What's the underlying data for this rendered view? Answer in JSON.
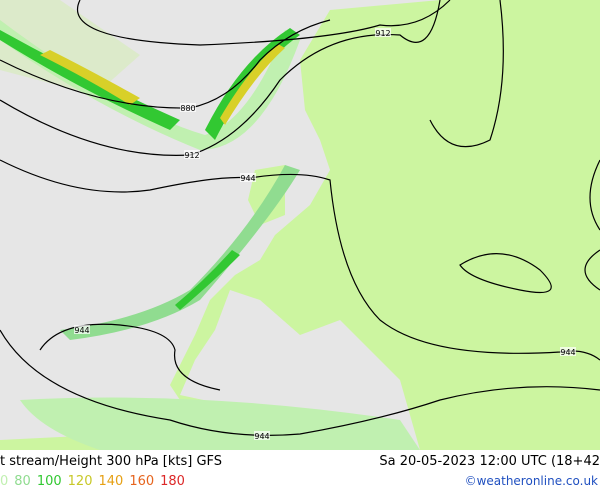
{
  "map": {
    "contour_labels": [
      {
        "text": "912"
      },
      {
        "text": "880"
      },
      {
        "text": "912"
      },
      {
        "text": "944"
      },
      {
        "text": "944"
      },
      {
        "text": "944"
      },
      {
        "text": "944"
      }
    ],
    "footer": {
      "title": "t stream/Height 300 hPa [kts] GFS",
      "datetime": "Sa 20-05-2023 12:00 UTC (18+42",
      "legend": [
        {
          "label": "0",
          "color": "#c0f0b0"
        },
        {
          "label": "80",
          "color": "#90dc90"
        },
        {
          "label": "100",
          "color": "#32c832"
        },
        {
          "label": "120",
          "color": "#c8c828"
        },
        {
          "label": "140",
          "color": "#e6a014"
        },
        {
          "label": "160",
          "color": "#e6641e"
        },
        {
          "label": "180",
          "color": "#dc2828"
        }
      ],
      "credit": "©weatheronline.co.uk"
    }
  }
}
